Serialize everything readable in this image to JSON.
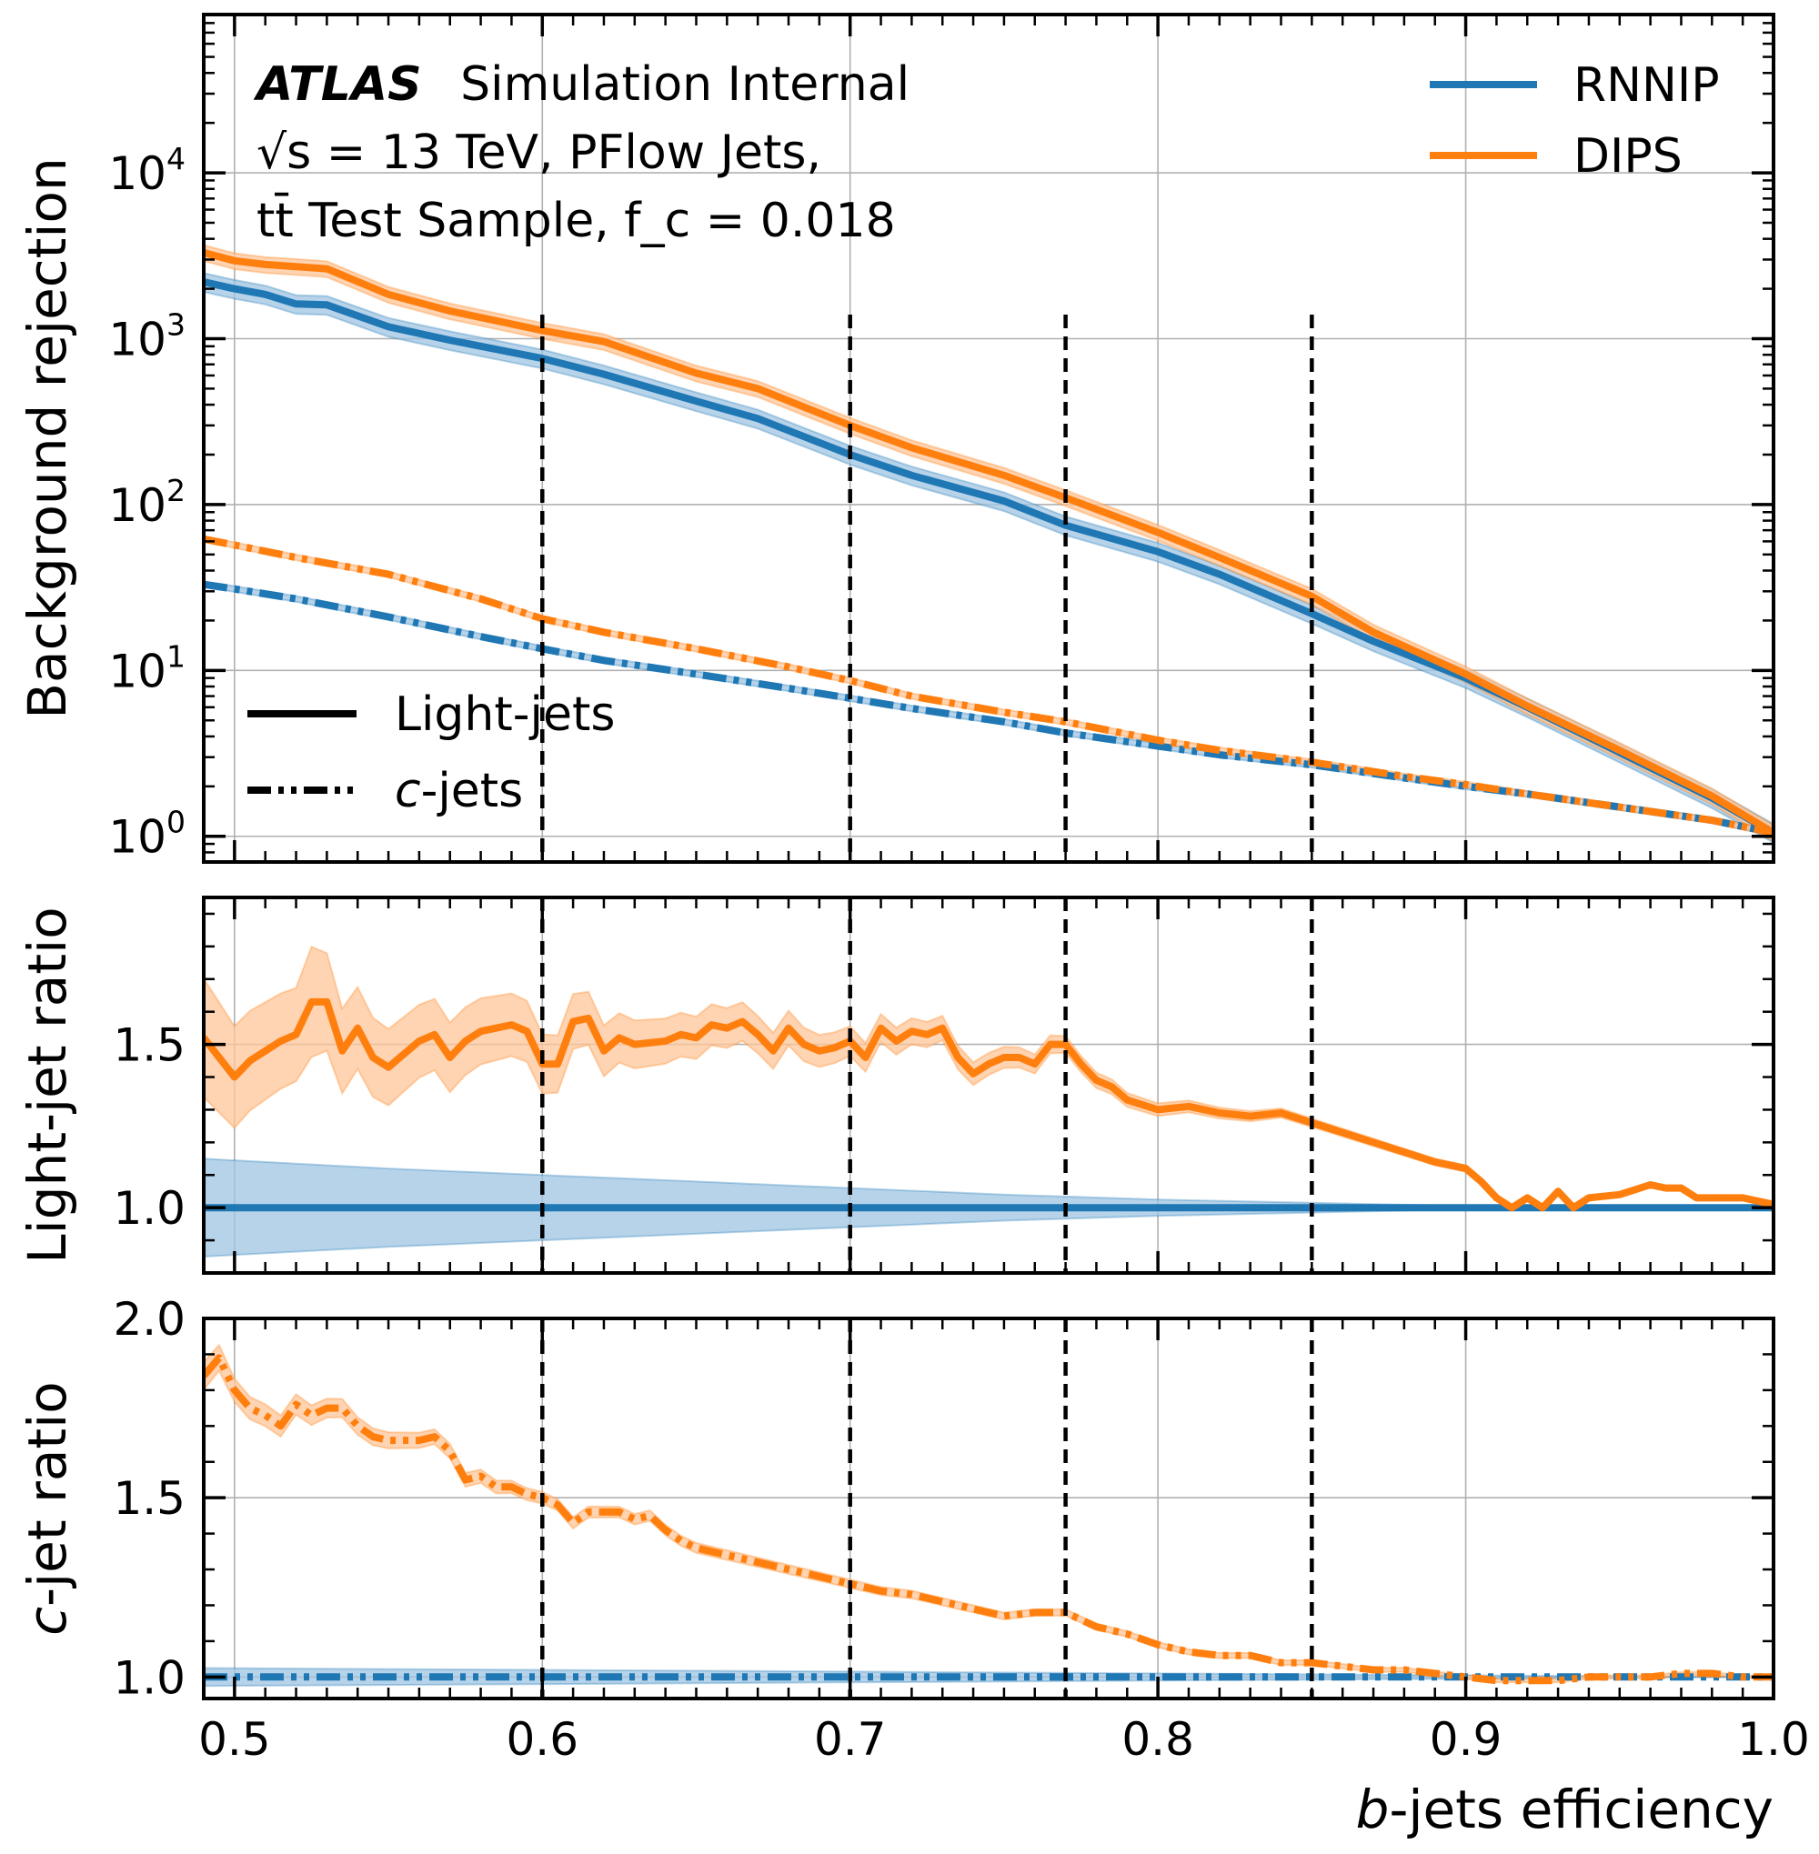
{
  "chart_data": {
    "type": "line",
    "annotation": {
      "brand": "ATLAS",
      "status": "Simulation Internal",
      "line2": "√s = 13 TeV, PFlow Jets,",
      "line3": "tt̄ Test Sample, f_c = 0.018"
    },
    "xlabel": "b-jets efficiency",
    "xlim": [
      0.49,
      1.0
    ],
    "x_ticks": [
      0.5,
      0.6,
      0.7,
      0.8,
      0.9,
      1.0
    ],
    "x_tick_labels": [
      "0.5",
      "0.6",
      "0.7",
      "0.8",
      "0.9",
      "1.0"
    ],
    "working_points": [
      0.6,
      0.7,
      0.77,
      0.85
    ],
    "colors": {
      "RNNIP": "#1f77b4",
      "DIPS": "#ff7f0e",
      "band_RNNIP": "#9ec4e3",
      "band_DIPS": "#ffc69a"
    },
    "legend_models": [
      "RNNIP",
      "DIPS"
    ],
    "legend_flavours": [
      "Light-jets",
      "c-jets"
    ],
    "panels": [
      {
        "name": "rejection",
        "ylabel": "Background rejection",
        "scale": "log",
        "ylim": [
          0.7,
          90000
        ],
        "y_ticks": [
          1,
          10,
          100,
          1000,
          10000
        ],
        "y_tick_labels": [
          [
            "10",
            "0"
          ],
          [
            "10",
            "1"
          ],
          [
            "10",
            "2"
          ],
          [
            "10",
            "3"
          ],
          [
            "10",
            "4"
          ]
        ],
        "series": [
          {
            "name": "RNNIP",
            "flavour": "light",
            "style": "solid",
            "x": [
              0.49,
              0.5,
              0.51,
              0.52,
              0.53,
              0.55,
              0.57,
              0.6,
              0.62,
              0.65,
              0.67,
              0.7,
              0.72,
              0.75,
              0.77,
              0.8,
              0.82,
              0.85,
              0.87,
              0.9,
              0.92,
              0.95,
              0.98,
              1.0
            ],
            "y": [
              2200,
              2000,
              1850,
              1620,
              1600,
              1180,
              980,
              760,
              610,
              420,
              330,
              200,
              150,
              105,
              75,
              52,
              38,
              22,
              15,
              9,
              6,
              3.2,
              1.7,
              1.05
            ],
            "band_rel": 0.13
          },
          {
            "name": "DIPS",
            "flavour": "light",
            "style": "solid",
            "x": [
              0.49,
              0.5,
              0.51,
              0.52,
              0.53,
              0.55,
              0.57,
              0.6,
              0.62,
              0.65,
              0.67,
              0.7,
              0.72,
              0.75,
              0.77,
              0.8,
              0.82,
              0.85,
              0.87,
              0.9,
              0.92,
              0.95,
              0.98,
              1.0
            ],
            "y": [
              3300,
              2950,
              2800,
              2720,
              2640,
              1850,
              1470,
              1120,
              960,
              620,
              500,
              300,
              220,
              150,
              110,
              68,
              48,
              28,
              17,
              9.5,
              6.1,
              3.3,
              1.75,
              1.05
            ],
            "band_rel": 0.11
          },
          {
            "name": "RNNIP",
            "flavour": "c",
            "style": "dashdot",
            "x": [
              0.49,
              0.5,
              0.52,
              0.55,
              0.58,
              0.6,
              0.62,
              0.65,
              0.68,
              0.7,
              0.72,
              0.75,
              0.77,
              0.8,
              0.82,
              0.85,
              0.88,
              0.9,
              0.92,
              0.95,
              0.98,
              1.0
            ],
            "y": [
              33,
              31,
              27,
              21,
              16,
              13.5,
              11.5,
              9.5,
              7.8,
              6.8,
              5.9,
              4.9,
              4.2,
              3.5,
              3.1,
              2.7,
              2.25,
              2.0,
              1.8,
              1.5,
              1.25,
              1.05
            ],
            "band_rel": 0.04
          },
          {
            "name": "DIPS",
            "flavour": "c",
            "style": "dashdot",
            "x": [
              0.49,
              0.5,
              0.52,
              0.55,
              0.58,
              0.6,
              0.62,
              0.65,
              0.68,
              0.7,
              0.72,
              0.75,
              0.77,
              0.8,
              0.82,
              0.85,
              0.88,
              0.9,
              0.92,
              0.95,
              0.98,
              1.0
            ],
            "y": [
              62,
              57,
              48,
              38,
              27,
              20.5,
              17,
              13.5,
              10.5,
              8.7,
              7.0,
              5.6,
              4.9,
              3.8,
              3.3,
              2.8,
              2.3,
              2.05,
              1.8,
              1.5,
              1.25,
              1.05
            ],
            "band_rel": 0.04
          }
        ]
      },
      {
        "name": "light-ratio",
        "ylabel": "Light-jet ratio",
        "scale": "linear",
        "ylim": [
          0.8,
          1.95
        ],
        "y_ticks": [
          1.0,
          1.5
        ],
        "y_tick_labels": [
          "1.0",
          "1.5"
        ],
        "series": [
          {
            "name": "RNNIP",
            "style": "solid",
            "x": [
              0.49,
              1.0
            ],
            "y": [
              1.0,
              1.0
            ],
            "band_x": [
              0.49,
              0.55,
              0.6,
              0.65,
              0.7,
              0.75,
              0.8,
              0.85,
              0.9,
              1.0
            ],
            "band_lo": [
              0.85,
              0.88,
              0.9,
              0.92,
              0.94,
              0.96,
              0.975,
              0.985,
              0.995,
              1.0
            ],
            "band_hi": [
              1.15,
              1.12,
              1.1,
              1.08,
              1.06,
              1.04,
              1.025,
              1.015,
              1.005,
              1.0
            ]
          },
          {
            "name": "DIPS",
            "style": "solid",
            "x": [
              0.49,
              0.5,
              0.505,
              0.515,
              0.52,
              0.525,
              0.53,
              0.535,
              0.54,
              0.545,
              0.55,
              0.56,
              0.565,
              0.57,
              0.575,
              0.58,
              0.585,
              0.59,
              0.595,
              0.6,
              0.605,
              0.61,
              0.615,
              0.62,
              0.625,
              0.63,
              0.64,
              0.645,
              0.65,
              0.655,
              0.66,
              0.665,
              0.67,
              0.675,
              0.68,
              0.685,
              0.69,
              0.695,
              0.7,
              0.705,
              0.71,
              0.715,
              0.72,
              0.725,
              0.73,
              0.735,
              0.74,
              0.745,
              0.75,
              0.755,
              0.76,
              0.765,
              0.77,
              0.775,
              0.78,
              0.785,
              0.79,
              0.8,
              0.81,
              0.82,
              0.83,
              0.84,
              0.85,
              0.86,
              0.87,
              0.88,
              0.89,
              0.9,
              0.905,
              0.91,
              0.915,
              0.92,
              0.925,
              0.93,
              0.935,
              0.94,
              0.95,
              0.96,
              0.965,
              0.97,
              0.975,
              0.98,
              0.99,
              1.0
            ],
            "y": [
              1.52,
              1.4,
              1.45,
              1.51,
              1.53,
              1.63,
              1.63,
              1.48,
              1.55,
              1.46,
              1.43,
              1.51,
              1.53,
              1.46,
              1.51,
              1.54,
              1.55,
              1.56,
              1.54,
              1.44,
              1.44,
              1.57,
              1.58,
              1.48,
              1.52,
              1.5,
              1.51,
              1.53,
              1.52,
              1.56,
              1.55,
              1.57,
              1.53,
              1.48,
              1.55,
              1.5,
              1.48,
              1.49,
              1.51,
              1.46,
              1.55,
              1.51,
              1.54,
              1.53,
              1.55,
              1.46,
              1.41,
              1.44,
              1.46,
              1.46,
              1.44,
              1.5,
              1.5,
              1.44,
              1.39,
              1.37,
              1.33,
              1.3,
              1.31,
              1.29,
              1.28,
              1.29,
              1.26,
              1.23,
              1.2,
              1.17,
              1.14,
              1.12,
              1.08,
              1.03,
              1.0,
              1.03,
              1.0,
              1.05,
              1.0,
              1.03,
              1.04,
              1.07,
              1.06,
              1.06,
              1.03,
              1.03,
              1.03,
              1.01
            ],
            "band_x": [
              0.49,
              0.5,
              0.52,
              0.525,
              0.535,
              0.55,
              0.6,
              0.62,
              0.65,
              0.7,
              0.75,
              0.77,
              0.8,
              0.85,
              0.9,
              0.95,
              1.0
            ],
            "band_w": [
              0.28,
              0.24,
              0.22,
              0.26,
              0.2,
              0.18,
              0.14,
              0.12,
              0.1,
              0.07,
              0.05,
              0.04,
              0.03,
              0.02,
              0.015,
              0.01,
              0.01
            ]
          }
        ]
      },
      {
        "name": "c-ratio",
        "ylabel": "c-jet ratio",
        "scale": "linear",
        "ylim": [
          0.94,
          2.0
        ],
        "y_ticks": [
          1.0,
          1.5,
          2.0
        ],
        "y_tick_labels": [
          "1.0",
          "1.5",
          "2.0"
        ],
        "series": [
          {
            "name": "RNNIP",
            "style": "dashdot",
            "x": [
              0.49,
              1.0
            ],
            "y": [
              1.0,
              1.0
            ],
            "band_x": [
              0.49,
              0.6,
              0.7,
              0.8,
              0.9,
              1.0
            ],
            "band_lo": [
              0.975,
              0.98,
              0.985,
              0.99,
              0.995,
              1.0
            ],
            "band_hi": [
              1.025,
              1.02,
              1.015,
              1.01,
              1.005,
              1.0
            ]
          },
          {
            "name": "DIPS",
            "style": "dashdot",
            "x": [
              0.49,
              0.495,
              0.5,
              0.505,
              0.51,
              0.515,
              0.52,
              0.525,
              0.53,
              0.535,
              0.54,
              0.545,
              0.55,
              0.555,
              0.56,
              0.565,
              0.57,
              0.575,
              0.58,
              0.585,
              0.59,
              0.595,
              0.6,
              0.605,
              0.61,
              0.615,
              0.62,
              0.625,
              0.63,
              0.635,
              0.64,
              0.645,
              0.65,
              0.66,
              0.67,
              0.68,
              0.69,
              0.7,
              0.71,
              0.72,
              0.73,
              0.74,
              0.75,
              0.76,
              0.77,
              0.78,
              0.79,
              0.8,
              0.81,
              0.82,
              0.83,
              0.84,
              0.85,
              0.86,
              0.87,
              0.88,
              0.89,
              0.9,
              0.91,
              0.92,
              0.93,
              0.94,
              0.95,
              0.96,
              0.97,
              0.98,
              0.99,
              1.0
            ],
            "y": [
              1.84,
              1.89,
              1.8,
              1.75,
              1.73,
              1.7,
              1.76,
              1.73,
              1.75,
              1.75,
              1.7,
              1.67,
              1.66,
              1.66,
              1.66,
              1.67,
              1.63,
              1.55,
              1.56,
              1.53,
              1.53,
              1.51,
              1.5,
              1.48,
              1.43,
              1.46,
              1.46,
              1.46,
              1.44,
              1.45,
              1.41,
              1.38,
              1.36,
              1.34,
              1.32,
              1.3,
              1.28,
              1.26,
              1.24,
              1.23,
              1.21,
              1.19,
              1.17,
              1.18,
              1.18,
              1.14,
              1.12,
              1.09,
              1.07,
              1.06,
              1.06,
              1.04,
              1.04,
              1.03,
              1.02,
              1.02,
              1.01,
              1.0,
              0.99,
              0.99,
              0.99,
              1.0,
              1.0,
              1.0,
              1.01,
              1.01,
              1.0,
              1.0
            ],
            "band_x": [
              0.49,
              0.5,
              0.55,
              0.6,
              0.7,
              0.8,
              0.9,
              1.0
            ],
            "band_w": [
              0.06,
              0.05,
              0.035,
              0.025,
              0.018,
              0.012,
              0.008,
              0.006
            ]
          }
        ]
      }
    ]
  }
}
